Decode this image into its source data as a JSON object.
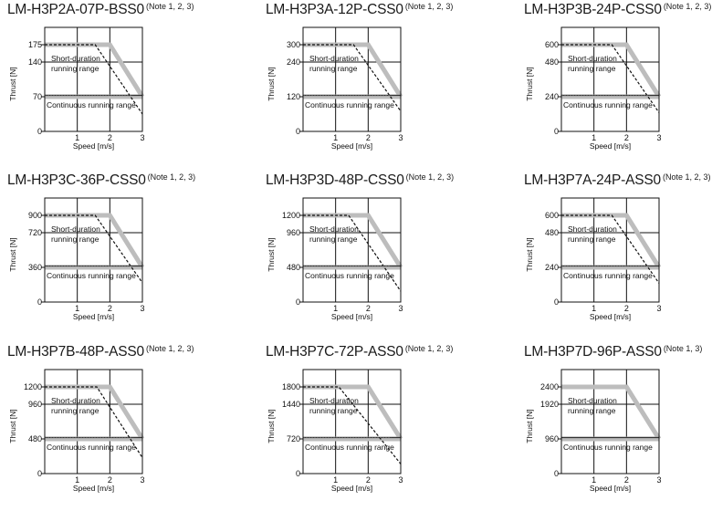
{
  "page": {
    "background": "#ffffff"
  },
  "colors": {
    "short_duration_curve": "#bdbdbd",
    "continuous_line_gray": "#bdbdbd",
    "continuous_line_dark": "#333333",
    "dashed_curve": "#111111",
    "frame": "#111111"
  },
  "labels": {
    "short_duration_line1": "Short-duration",
    "short_duration_line2": "running range",
    "continuous": "Continuous running range",
    "xlabel": "Speed [m/s]",
    "ylabel": "Thrust [N]"
  },
  "chart_data": [
    {
      "type": "line",
      "title": "LM-H3P2A-07P-BSS0",
      "note": "(Note 1, 2, 3)",
      "xlabel": "Speed [m/s]",
      "ylabel": "Thrust [N]",
      "xlim": [
        0,
        3
      ],
      "ylim": [
        0,
        210
      ],
      "xticks": [
        "1",
        "2",
        "3"
      ],
      "yticks": [
        "0",
        "70",
        "140",
        "175"
      ],
      "ytick_values": [
        0,
        70,
        140,
        175
      ],
      "grid": true,
      "series": [
        {
          "name": "Short-duration running range (solid gray)",
          "x": [
            0,
            2.0,
            3.0
          ],
          "y": [
            175,
            175,
            70
          ]
        },
        {
          "name": "Short-duration running range (dashed)",
          "x": [
            0,
            1.55,
            3.0
          ],
          "y": [
            175,
            175,
            35
          ]
        },
        {
          "name": "Continuous running range",
          "x": [
            0,
            3.0
          ],
          "y": [
            70,
            70
          ]
        }
      ],
      "annotations": [
        "Short-duration running range",
        "Continuous running range"
      ]
    },
    {
      "type": "line",
      "title": "LM-H3P3A-12P-CSS0",
      "note": "(Note 1, 2, 3)",
      "xlabel": "Speed [m/s]",
      "ylabel": "Thrust [N]",
      "xlim": [
        0,
        3
      ],
      "ylim": [
        0,
        360
      ],
      "xticks": [
        "1",
        "2",
        "3"
      ],
      "yticks": [
        "0",
        "120",
        "240",
        "300"
      ],
      "ytick_values": [
        0,
        120,
        240,
        300
      ],
      "grid": true,
      "series": [
        {
          "name": "Short-duration running range (solid gray)",
          "x": [
            0,
            2.0,
            3.0
          ],
          "y": [
            300,
            300,
            120
          ]
        },
        {
          "name": "Short-duration running range (dashed)",
          "x": [
            0,
            1.55,
            3.0
          ],
          "y": [
            300,
            300,
            70
          ]
        },
        {
          "name": "Continuous running range",
          "x": [
            0,
            3.0
          ],
          "y": [
            120,
            120
          ]
        }
      ],
      "annotations": [
        "Short-duration running range",
        "Continuous running range"
      ]
    },
    {
      "type": "line",
      "title": "LM-H3P3B-24P-CSS0",
      "note": "(Note 1, 2, 3)",
      "xlabel": "Speed [m/s]",
      "ylabel": "Thrust [N]",
      "xlim": [
        0,
        3
      ],
      "ylim": [
        0,
        720
      ],
      "xticks": [
        "1",
        "2",
        "3"
      ],
      "yticks": [
        "0",
        "240",
        "480",
        "600"
      ],
      "ytick_values": [
        0,
        240,
        480,
        600
      ],
      "grid": true,
      "series": [
        {
          "name": "Short-duration running range (solid gray)",
          "x": [
            0,
            2.0,
            3.0
          ],
          "y": [
            600,
            600,
            240
          ]
        },
        {
          "name": "Short-duration running range (dashed)",
          "x": [
            0,
            1.55,
            3.0
          ],
          "y": [
            600,
            600,
            130
          ]
        },
        {
          "name": "Continuous running range",
          "x": [
            0,
            3.0
          ],
          "y": [
            240,
            240
          ]
        }
      ],
      "annotations": [
        "Short-duration running range",
        "Continuous running range"
      ]
    },
    {
      "type": "line",
      "title": "LM-H3P3C-36P-CSS0",
      "note": "(Note 1, 2, 3)",
      "xlabel": "Speed [m/s]",
      "ylabel": "Thrust [N]",
      "xlim": [
        0,
        3
      ],
      "ylim": [
        0,
        1080
      ],
      "xticks": [
        "1",
        "2",
        "3"
      ],
      "yticks": [
        "0",
        "360",
        "720",
        "900"
      ],
      "ytick_values": [
        0,
        360,
        720,
        900
      ],
      "grid": true,
      "series": [
        {
          "name": "Short-duration running range (solid gray)",
          "x": [
            0,
            2.0,
            3.0
          ],
          "y": [
            900,
            900,
            360
          ]
        },
        {
          "name": "Short-duration running range (dashed)",
          "x": [
            0,
            1.55,
            3.0
          ],
          "y": [
            900,
            900,
            200
          ]
        },
        {
          "name": "Continuous running range",
          "x": [
            0,
            3.0
          ],
          "y": [
            360,
            360
          ]
        }
      ],
      "annotations": [
        "Short-duration running range",
        "Continuous running range"
      ]
    },
    {
      "type": "line",
      "title": "LM-H3P3D-48P-CSS0",
      "note": "(Note 1, 2, 3)",
      "xlabel": "Speed [m/s]",
      "ylabel": "Thrust [N]",
      "xlim": [
        0,
        3
      ],
      "ylim": [
        0,
        1440
      ],
      "xticks": [
        "1",
        "2",
        "3"
      ],
      "yticks": [
        "0",
        "480",
        "960",
        "1200"
      ],
      "ytick_values": [
        0,
        480,
        960,
        1200
      ],
      "grid": true,
      "series": [
        {
          "name": "Short-duration running range (solid gray)",
          "x": [
            0,
            2.0,
            3.0
          ],
          "y": [
            1200,
            1200,
            480
          ]
        },
        {
          "name": "Short-duration running range (dashed)",
          "x": [
            0,
            1.4,
            3.0
          ],
          "y": [
            1200,
            1200,
            150
          ]
        },
        {
          "name": "Continuous running range",
          "x": [
            0,
            3.0
          ],
          "y": [
            480,
            480
          ]
        }
      ],
      "annotations": [
        "Short-duration running range",
        "Continuous running range"
      ]
    },
    {
      "type": "line",
      "title": "LM-H3P7A-24P-ASS0",
      "note": "(Note 1, 2, 3)",
      "xlabel": "Speed [m/s]",
      "ylabel": "Thrust [N]",
      "xlim": [
        0,
        3
      ],
      "ylim": [
        0,
        720
      ],
      "xticks": [
        "1",
        "2",
        "3"
      ],
      "yticks": [
        "0",
        "240",
        "480",
        "600"
      ],
      "ytick_values": [
        0,
        240,
        480,
        600
      ],
      "grid": true,
      "series": [
        {
          "name": "Short-duration running range (solid gray)",
          "x": [
            0,
            2.0,
            3.0
          ],
          "y": [
            600,
            600,
            240
          ]
        },
        {
          "name": "Short-duration running range (dashed)",
          "x": [
            0,
            1.55,
            3.0
          ],
          "y": [
            600,
            600,
            130
          ]
        },
        {
          "name": "Continuous running range",
          "x": [
            0,
            3.0
          ],
          "y": [
            240,
            240
          ]
        }
      ],
      "annotations": [
        "Short-duration running range",
        "Continuous running range"
      ]
    },
    {
      "type": "line",
      "title": "LM-H3P7B-48P-ASS0",
      "note": "(Note 1, 2, 3)",
      "xlabel": "Speed [m/s]",
      "ylabel": "Thrust [N]",
      "xlim": [
        0,
        3
      ],
      "ylim": [
        0,
        1440
      ],
      "xticks": [
        "1",
        "2",
        "3"
      ],
      "yticks": [
        "0",
        "480",
        "960",
        "1200"
      ],
      "ytick_values": [
        0,
        480,
        960,
        1200
      ],
      "grid": true,
      "series": [
        {
          "name": "Short-duration running range (solid gray)",
          "x": [
            0,
            2.0,
            3.0
          ],
          "y": [
            1200,
            1200,
            480
          ]
        },
        {
          "name": "Short-duration running range (dashed)",
          "x": [
            0,
            1.6,
            3.0
          ],
          "y": [
            1200,
            1200,
            220
          ]
        },
        {
          "name": "Continuous running range",
          "x": [
            0,
            3.0
          ],
          "y": [
            480,
            480
          ]
        }
      ],
      "annotations": [
        "Short-duration running range",
        "Continuous running range"
      ]
    },
    {
      "type": "line",
      "title": "LM-H3P7C-72P-ASS0",
      "note": "(Note 1, 2, 3)",
      "xlabel": "Speed [m/s]",
      "ylabel": "Thrust [N]",
      "xlim": [
        0,
        3
      ],
      "ylim": [
        0,
        2160
      ],
      "xticks": [
        "1",
        "2",
        "3"
      ],
      "yticks": [
        "0",
        "720",
        "1440",
        "1800"
      ],
      "ytick_values": [
        0,
        720,
        1440,
        1800
      ],
      "grid": true,
      "series": [
        {
          "name": "Short-duration running range (solid gray)",
          "x": [
            0,
            2.0,
            3.0
          ],
          "y": [
            1800,
            1800,
            720
          ]
        },
        {
          "name": "Short-duration running range (dashed)",
          "x": [
            0,
            1.1,
            3.0
          ],
          "y": [
            1800,
            1800,
            200
          ]
        },
        {
          "name": "Continuous running range",
          "x": [
            0,
            3.0
          ],
          "y": [
            720,
            720
          ]
        }
      ],
      "annotations": [
        "Short-duration running range",
        "Continuous running range"
      ]
    },
    {
      "type": "line",
      "title": "LM-H3P7D-96P-ASS0",
      "note": "(Note 1, 3)",
      "xlabel": "Speed [m/s]",
      "ylabel": "Thrust [N]",
      "xlim": [
        0,
        3
      ],
      "ylim": [
        0,
        2880
      ],
      "xticks": [
        "1",
        "2",
        "3"
      ],
      "yticks": [
        "0",
        "960",
        "1920",
        "2400"
      ],
      "ytick_values": [
        0,
        960,
        1920,
        2400
      ],
      "grid": true,
      "series": [
        {
          "name": "Short-duration running range (solid gray)",
          "x": [
            0,
            2.0,
            3.0
          ],
          "y": [
            2400,
            2400,
            960
          ]
        },
        {
          "name": "Continuous running range",
          "x": [
            0,
            3.0
          ],
          "y": [
            960,
            960
          ]
        }
      ],
      "annotations": [
        "Short-duration running range",
        "Continuous running range"
      ]
    }
  ]
}
